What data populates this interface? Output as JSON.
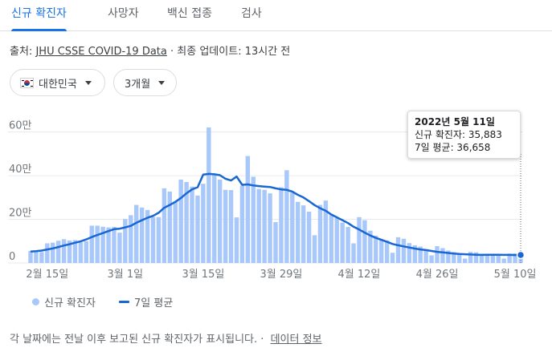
{
  "tabs": [
    {
      "label": "신규 확진자",
      "active": true
    },
    {
      "label": "사망자",
      "active": false
    },
    {
      "label": "백신 접종",
      "active": false
    },
    {
      "label": "검사",
      "active": false
    }
  ],
  "source": {
    "prefix": "출처:",
    "link": "JHU CSSE COVID-19 Data",
    "separator": "·",
    "updated": "최종 업데이트: 13시간 전"
  },
  "filters": {
    "region": "대한민국",
    "period": "3개월"
  },
  "tooltip": {
    "date": "2022년 5월 11일",
    "new_cases": "신규 확진자: 35,883",
    "avg7": "7일 평균: 36,658"
  },
  "legend": {
    "bars": "신규 확진자",
    "line": "7일 평균"
  },
  "footer": {
    "note": "각 날짜에는 전날 이후 보고된 신규 확진자가 표시됩니다.",
    "separator": "·",
    "link": "데이터 정보"
  },
  "colors": {
    "bar": "#a8c7fa",
    "line": "#1967d2",
    "accent": "#1a73e8"
  },
  "chart_data": {
    "type": "bar",
    "title": "",
    "ylim": [
      0,
      650000
    ],
    "y_ticks": [
      {
        "value": 0,
        "label": "0"
      },
      {
        "value": 200000,
        "label": "20만"
      },
      {
        "value": 400000,
        "label": "40만"
      },
      {
        "value": 600000,
        "label": "60만"
      }
    ],
    "x_ticks": [
      {
        "date": "2022-02-15",
        "label": "2월 15일"
      },
      {
        "date": "2022-03-01",
        "label": "3월 1일"
      },
      {
        "date": "2022-03-15",
        "label": "3월 15일"
      },
      {
        "date": "2022-03-29",
        "label": "3월 29일"
      },
      {
        "date": "2022-04-12",
        "label": "4월 12일"
      },
      {
        "date": "2022-04-26",
        "label": "4월 26일"
      },
      {
        "date": "2022-05-10",
        "label": "5월 10일"
      }
    ],
    "dates": [
      "2022-02-12",
      "2022-02-13",
      "2022-02-14",
      "2022-02-15",
      "2022-02-16",
      "2022-02-17",
      "2022-02-18",
      "2022-02-19",
      "2022-02-20",
      "2022-02-21",
      "2022-02-22",
      "2022-02-23",
      "2022-02-24",
      "2022-02-25",
      "2022-02-26",
      "2022-02-27",
      "2022-02-28",
      "2022-03-01",
      "2022-03-02",
      "2022-03-03",
      "2022-03-04",
      "2022-03-05",
      "2022-03-06",
      "2022-03-07",
      "2022-03-08",
      "2022-03-09",
      "2022-03-10",
      "2022-03-11",
      "2022-03-12",
      "2022-03-13",
      "2022-03-14",
      "2022-03-15",
      "2022-03-16",
      "2022-03-17",
      "2022-03-18",
      "2022-03-19",
      "2022-03-20",
      "2022-03-21",
      "2022-03-22",
      "2022-03-23",
      "2022-03-24",
      "2022-03-25",
      "2022-03-26",
      "2022-03-27",
      "2022-03-28",
      "2022-03-29",
      "2022-03-30",
      "2022-03-31",
      "2022-04-01",
      "2022-04-02",
      "2022-04-03",
      "2022-04-04",
      "2022-04-05",
      "2022-04-06",
      "2022-04-07",
      "2022-04-08",
      "2022-04-09",
      "2022-04-10",
      "2022-04-11",
      "2022-04-12",
      "2022-04-13",
      "2022-04-14",
      "2022-04-15",
      "2022-04-16",
      "2022-04-17",
      "2022-04-18",
      "2022-04-19",
      "2022-04-20",
      "2022-04-21",
      "2022-04-22",
      "2022-04-23",
      "2022-04-24",
      "2022-04-25",
      "2022-04-26",
      "2022-04-27",
      "2022-04-28",
      "2022-04-29",
      "2022-04-30",
      "2022-05-01",
      "2022-05-02",
      "2022-05-03",
      "2022-05-04",
      "2022-05-05",
      "2022-05-06",
      "2022-05-07",
      "2022-05-08",
      "2022-05-09",
      "2022-05-10",
      "2022-05-11"
    ],
    "series": [
      {
        "name": "신규 확진자",
        "type": "bar",
        "values": [
          55000,
          55000,
          50000,
          90000,
          93000,
          102000,
          109000,
          103000,
          105000,
          95000,
          100000,
          171000,
          171000,
          166000,
          163000,
          165000,
          139000,
          201000,
          219000,
          266000,
          254000,
          243000,
          211000,
          210000,
          342000,
          327000,
          282000,
          382000,
          371000,
          350000,
          309000,
          363000,
          621000,
          407000,
          382000,
          335000,
          334000,
          209000,
          354000,
          490000,
          395000,
          339000,
          335000,
          319000,
          187000,
          347000,
          425000,
          321000,
          280000,
          264000,
          235000,
          127000,
          266000,
          286000,
          224000,
          206000,
          185000,
          165000,
          90000,
          210000,
          196000,
          148000,
          125000,
          107000,
          103000,
          47000,
          118000,
          111000,
          91000,
          81000,
          75000,
          63000,
          35000,
          77000,
          68000,
          57000,
          50000,
          43000,
          20000,
          51000,
          49000,
          42000,
          39000,
          40000,
          38000,
          20000,
          43000,
          44000,
          35883
        ]
      },
      {
        "name": "7일 평균",
        "type": "line",
        "values": [
          52000,
          54000,
          57000,
          62000,
          67000,
          73000,
          80000,
          86000,
          93000,
          99000,
          108000,
          119000,
          128000,
          137000,
          146000,
          155000,
          157000,
          163000,
          170000,
          184000,
          196000,
          207000,
          216000,
          230000,
          253000,
          266000,
          280000,
          298000,
          319000,
          337000,
          347000,
          405000,
          408000,
          406000,
          402000,
          386000,
          378000,
          396000,
          358000,
          360000,
          355000,
          352000,
          350000,
          348000,
          342000,
          337000,
          335000,
          327000,
          312000,
          300000,
          283000,
          265000,
          251000,
          239000,
          222000,
          209000,
          196000,
          183000,
          166000,
          153000,
          139000,
          126000,
          115000,
          106000,
          97000,
          87000,
          81000,
          76000,
          71000,
          66000,
          62000,
          59000,
          55000,
          51000,
          49000,
          46000,
          43000,
          41000,
          40000,
          39000,
          38000,
          37000,
          38000,
          38000,
          38000,
          37000,
          37000,
          36500,
          36658
        ]
      }
    ],
    "highlight_date": "2022-05-11"
  }
}
